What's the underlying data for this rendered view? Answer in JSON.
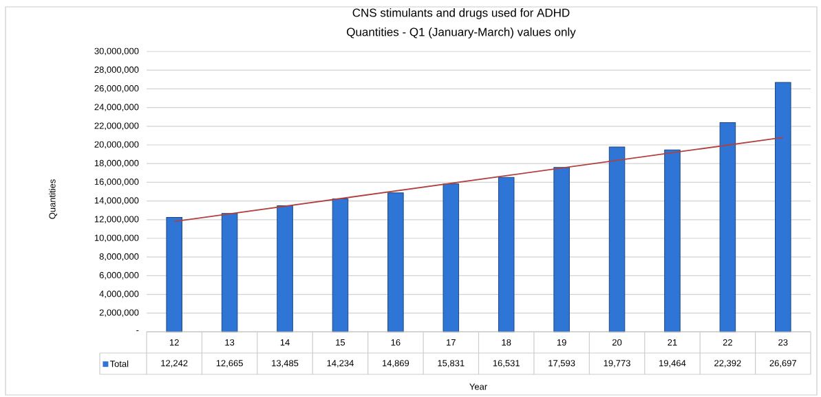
{
  "chart_data": {
    "type": "bar",
    "title": "CNS stimulants and drugs used for ADHD",
    "subtitle": "Quantities - Q1 (January-March) values only",
    "xlabel": "Year",
    "ylabel": "Quantities",
    "categories": [
      "12",
      "13",
      "14",
      "15",
      "16",
      "17",
      "18",
      "19",
      "20",
      "21",
      "22",
      "23"
    ],
    "series": [
      {
        "name": "Total",
        "color": "#2e75d6",
        "values": [
          12242000,
          12665000,
          13485000,
          14234000,
          14869000,
          15831000,
          16531000,
          17593000,
          19773000,
          19464000,
          22392000,
          26697000
        ]
      },
      {
        "type": "line",
        "color": "#b0413e",
        "x": [
          "12",
          "23"
        ],
        "values": [
          11800000,
          20800000
        ]
      }
    ],
    "ylim": [
      0,
      30000000
    ],
    "yticks": [
      {
        "value": 0,
        "label": "-"
      },
      {
        "value": 2000000,
        "label": "2,000,000"
      },
      {
        "value": 4000000,
        "label": "4,000,000"
      },
      {
        "value": 6000000,
        "label": "6,000,000"
      },
      {
        "value": 8000000,
        "label": "8,000,000"
      },
      {
        "value": 10000000,
        "label": "10,000,000"
      },
      {
        "value": 12000000,
        "label": "12,000,000"
      },
      {
        "value": 14000000,
        "label": "14,000,000"
      },
      {
        "value": 16000000,
        "label": "16,000,000"
      },
      {
        "value": 18000000,
        "label": "18,000,000"
      },
      {
        "value": 20000000,
        "label": "20,000,000"
      },
      {
        "value": 22000000,
        "label": "22,000,000"
      },
      {
        "value": 24000000,
        "label": "24,000,000"
      },
      {
        "value": 26000000,
        "label": "26,000,000"
      },
      {
        "value": 28000000,
        "label": "28,000,000"
      },
      {
        "value": 30000000,
        "label": "30,000,000"
      }
    ],
    "annotations": [
      "12,242",
      "12,665",
      "13,485",
      "14,234",
      "14,869",
      "15,831",
      "16,531",
      "17,593",
      "19,773",
      "19,464",
      "22,392",
      "26,697"
    ],
    "grid": "y",
    "legend": "bottom",
    "marker": "none",
    "line_style": "solid"
  }
}
